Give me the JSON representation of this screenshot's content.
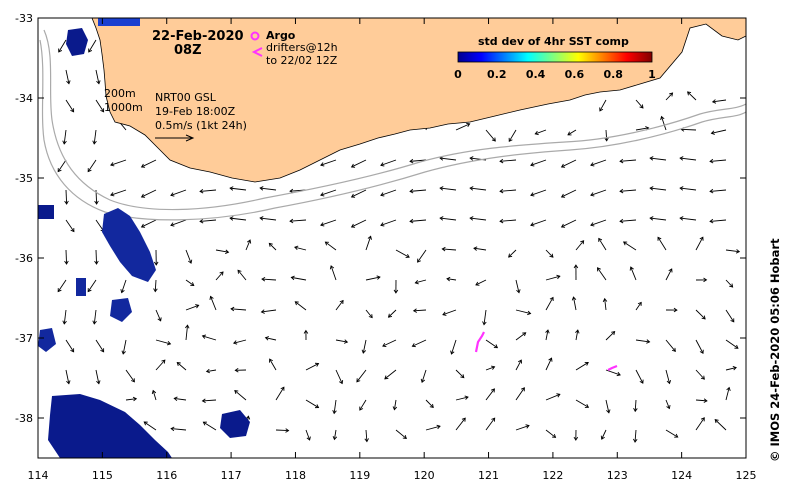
{
  "map": {
    "date_title": "22-Feb-2020",
    "time_title": "08Z",
    "legend": {
      "argo_label": "Argo",
      "drifters_label": "drifters@12h",
      "drifters_to": "to 22/02 12Z",
      "argo_color": "#ff33ff",
      "drifter_color": "#ff33ff"
    },
    "colorbar": {
      "title": "std dev of 4hr SST comp",
      "ticks": [
        "0",
        "0.2",
        "0.4",
        "0.6",
        "0.8",
        "1"
      ]
    },
    "annotations": {
      "isobath_1": "200m",
      "isobath_2": "1000m",
      "product": "NRT00 GSL",
      "product_time": "19-Feb 18:00Z",
      "scale": "0.5m/s (1kt 24h)"
    },
    "credit": "© IMOS 24-Feb-2020 05:06 Hobart",
    "lon_ticks": [
      "114",
      "115",
      "116",
      "117",
      "118",
      "119",
      "120",
      "121",
      "122",
      "123",
      "124",
      "125"
    ],
    "lat_ticks": [
      "-33",
      "-34",
      "-35",
      "-36",
      "-37",
      "-38"
    ],
    "colors": {
      "land": "#ffcc99",
      "ocean": "#ffffff",
      "isobath": "#aaaaaa",
      "cloud_dark": "#0a1a8c",
      "cloud_mid": "#1a3fd0"
    }
  }
}
